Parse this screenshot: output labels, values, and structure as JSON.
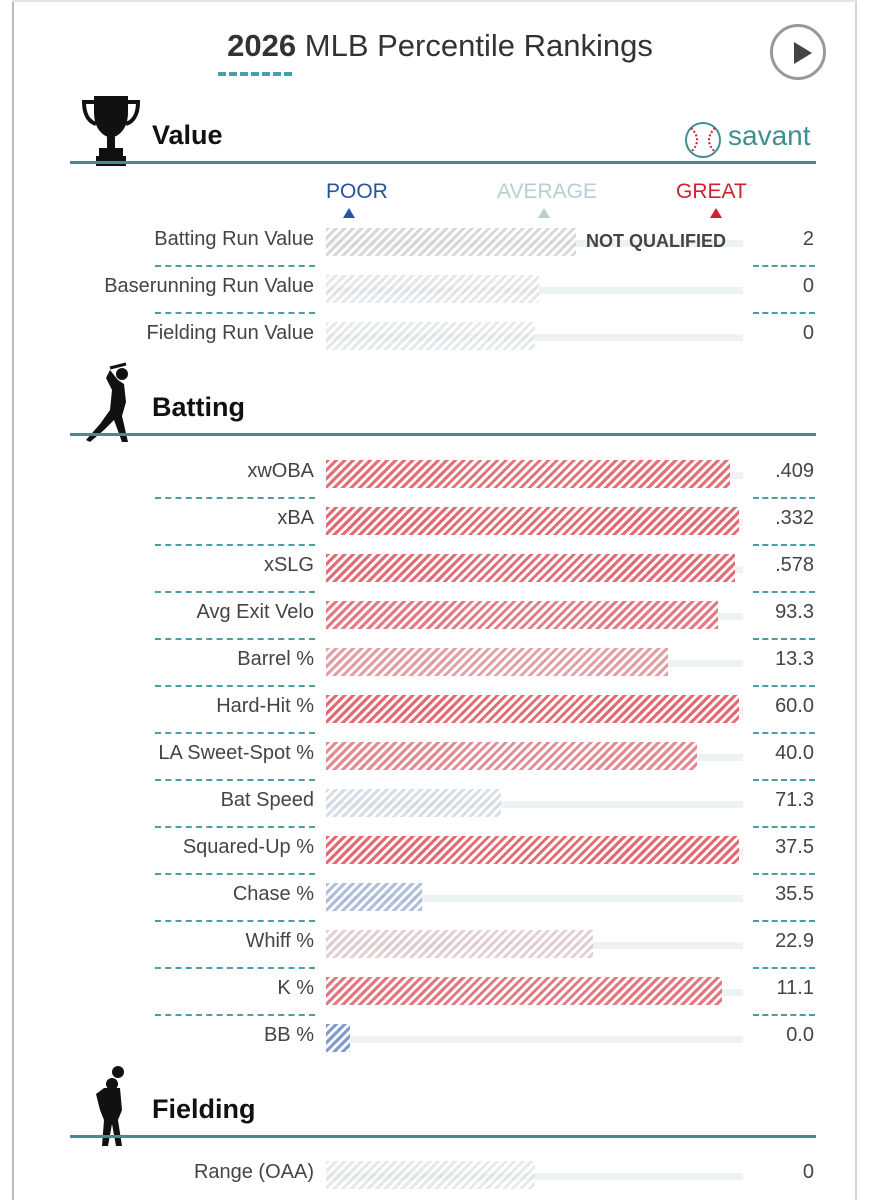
{
  "header": {
    "year": "2026",
    "title_rest": "MLB Percentile Rankings"
  },
  "brand": {
    "name": "savant",
    "icon": "baseball-icon"
  },
  "scale": {
    "poor": "POOR",
    "average": "AVERAGE",
    "great": "GREAT"
  },
  "colors": {
    "accent": "#3f8f91",
    "poor": "#2952a3",
    "great": "#d0202d",
    "average": "#b7cdd4"
  },
  "chart_data": {
    "type": "bar",
    "orientation": "horizontal",
    "value_axis": "percentile",
    "xlim": [
      0,
      100
    ],
    "sections": [
      {
        "name": "Value",
        "icon": "trophy-icon",
        "rows": [
          {
            "label": "Batting Run Value",
            "value": "2",
            "percentile": 60,
            "qualified": false,
            "note": "NOT QUALIFIED"
          },
          {
            "label": "Baserunning Run Value",
            "value": "0",
            "percentile": 51,
            "qualified": true
          },
          {
            "label": "Fielding Run Value",
            "value": "0",
            "percentile": 50,
            "qualified": true
          }
        ]
      },
      {
        "name": "Batting",
        "icon": "batter-icon",
        "rows": [
          {
            "label": "xwOBA",
            "value": ".409",
            "percentile": 97,
            "qualified": true
          },
          {
            "label": "xBA",
            "value": ".332",
            "percentile": 99,
            "qualified": true
          },
          {
            "label": "xSLG",
            "value": ".578",
            "percentile": 98,
            "qualified": true
          },
          {
            "label": "Avg Exit Velo",
            "value": "93.3",
            "percentile": 94,
            "qualified": true
          },
          {
            "label": "Barrel %",
            "value": "13.3",
            "percentile": 82,
            "qualified": true
          },
          {
            "label": "Hard-Hit %",
            "value": "60.0",
            "percentile": 99,
            "qualified": true
          },
          {
            "label": "LA Sweet-Spot %",
            "value": "40.0",
            "percentile": 89,
            "qualified": true
          },
          {
            "label": "Bat Speed",
            "value": "71.3",
            "percentile": 42,
            "qualified": true
          },
          {
            "label": "Squared-Up %",
            "value": "37.5",
            "percentile": 99,
            "qualified": true
          },
          {
            "label": "Chase %",
            "value": "35.5",
            "percentile": 23,
            "qualified": true
          },
          {
            "label": "Whiff %",
            "value": "22.9",
            "percentile": 64,
            "qualified": true
          },
          {
            "label": "K %",
            "value": "11.1",
            "percentile": 95,
            "qualified": true
          },
          {
            "label": "BB %",
            "value": "0.0",
            "percentile": 5,
            "qualified": true
          }
        ]
      },
      {
        "name": "Fielding",
        "icon": "fielder-icon",
        "rows": [
          {
            "label": "Range (OAA)",
            "value": "0",
            "percentile": 50,
            "qualified": true
          }
        ]
      }
    ]
  }
}
